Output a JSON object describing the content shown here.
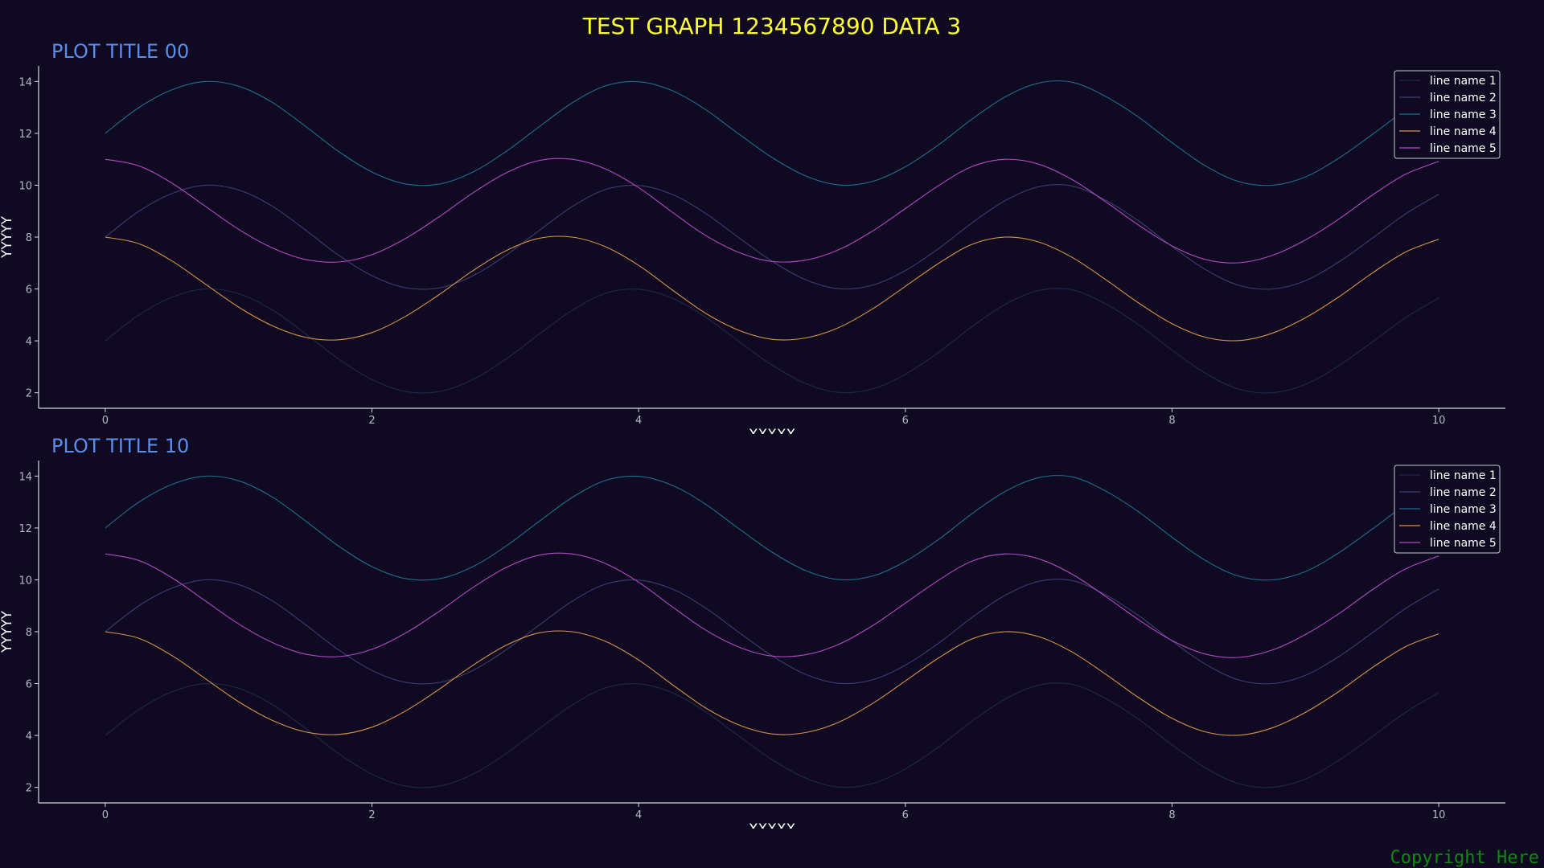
{
  "figure": {
    "title": "TEST GRAPH 1234567890 DATA 3",
    "copyright": "Copyright Here",
    "background": "#0f0a22",
    "title_color": "#ffff33",
    "panel_title_color": "#5b8def"
  },
  "chart_data": [
    {
      "type": "line",
      "title": "PLOT TITLE 00",
      "xlabel": "XXXXX",
      "ylabel": "YYYYY",
      "xlim": [
        -0.5,
        10.5
      ],
      "ylim": [
        1.4,
        14.6
      ],
      "xticks": [
        0,
        2,
        4,
        6,
        8,
        10
      ],
      "yticks": [
        2,
        4,
        6,
        8,
        10,
        12,
        14
      ],
      "grid": false,
      "legend_position": "top-right",
      "x": [
        0,
        0.25,
        0.5,
        0.75,
        1,
        1.25,
        1.5,
        1.75,
        2,
        2.25,
        2.5,
        2.75,
        3,
        3.25,
        3.5,
        3.75,
        4,
        4.25,
        4.5,
        4.75,
        5,
        5.25,
        5.5,
        5.75,
        6,
        6.25,
        6.5,
        6.75,
        7,
        7.25,
        7.5,
        7.75,
        8,
        8.25,
        8.5,
        8.75,
        9,
        9.25,
        9.5,
        9.75,
        10
      ],
      "series": [
        {
          "name": "line name 1",
          "color": "#1e2a48",
          "values": [
            4.0,
            4.99,
            5.68,
            6.0,
            5.82,
            5.2,
            4.28,
            3.3,
            2.51,
            2.05,
            2.04,
            2.49,
            3.28,
            4.24,
            5.17,
            5.83,
            5.99,
            5.65,
            4.92,
            3.98,
            3.07,
            2.36,
            2.01,
            2.14,
            2.71,
            3.56,
            4.55,
            5.41,
            5.94,
            5.97,
            5.43,
            4.62,
            3.64,
            2.75,
            2.14,
            2.0,
            2.32,
            3.04,
            3.95,
            4.89,
            5.65
          ]
        },
        {
          "name": "line name 2",
          "color": "#3d3c70",
          "values": [
            8.0,
            8.99,
            9.68,
            10.0,
            9.82,
            9.2,
            8.28,
            7.3,
            6.51,
            6.05,
            6.04,
            6.49,
            7.28,
            8.24,
            9.17,
            9.83,
            9.99,
            9.65,
            8.92,
            7.98,
            7.07,
            6.36,
            6.01,
            6.14,
            6.71,
            7.56,
            8.55,
            9.41,
            9.94,
            9.97,
            9.43,
            8.62,
            7.64,
            6.75,
            6.14,
            6.0,
            6.32,
            7.04,
            7.95,
            8.89,
            9.65
          ]
        },
        {
          "name": "line name 3",
          "color": "#1f6f8b",
          "values": [
            12.0,
            12.99,
            13.68,
            14.0,
            13.82,
            13.2,
            12.28,
            11.3,
            10.51,
            10.05,
            10.04,
            10.49,
            11.28,
            12.24,
            13.17,
            13.83,
            13.99,
            13.65,
            12.92,
            11.98,
            11.07,
            10.36,
            10.01,
            10.14,
            10.71,
            11.56,
            12.55,
            13.41,
            13.94,
            13.97,
            13.43,
            12.62,
            11.64,
            10.75,
            10.14,
            10.0,
            10.32,
            11.04,
            11.95,
            12.89,
            13.65
          ]
        },
        {
          "name": "line name 4",
          "color": "#d9924a",
          "values": [
            8.0,
            7.75,
            7.08,
            6.19,
            5.3,
            4.59,
            4.14,
            4.04,
            4.32,
            4.94,
            5.77,
            6.68,
            7.46,
            7.95,
            8.0,
            7.63,
            6.91,
            5.97,
            5.07,
            4.41,
            4.06,
            4.11,
            4.51,
            5.22,
            6.1,
            6.99,
            7.72,
            8.0,
            7.81,
            7.22,
            6.37,
            5.46,
            4.66,
            4.14,
            4.01,
            4.29,
            4.89,
            5.69,
            6.61,
            7.42,
            7.92
          ]
        },
        {
          "name": "line name 5",
          "color": "#b347c4",
          "values": [
            11.0,
            10.75,
            10.08,
            9.19,
            8.3,
            7.59,
            7.14,
            7.04,
            7.32,
            7.94,
            8.77,
            9.68,
            10.46,
            10.95,
            11.0,
            10.63,
            9.91,
            8.97,
            8.07,
            7.41,
            7.06,
            7.11,
            7.51,
            8.22,
            9.1,
            9.99,
            10.72,
            11.0,
            10.81,
            10.22,
            9.37,
            8.46,
            7.66,
            7.14,
            7.01,
            7.29,
            7.89,
            8.69,
            9.61,
            10.42,
            10.92
          ]
        }
      ]
    },
    {
      "type": "line",
      "title": "PLOT TITLE 10",
      "xlabel": "XXXXX",
      "ylabel": "YYYYY",
      "xlim": [
        -0.5,
        10.5
      ],
      "ylim": [
        1.4,
        14.6
      ],
      "xticks": [
        0,
        2,
        4,
        6,
        8,
        10
      ],
      "yticks": [
        2,
        4,
        6,
        8,
        10,
        12,
        14
      ],
      "grid": false,
      "legend_position": "top-right",
      "x": [
        0,
        0.25,
        0.5,
        0.75,
        1,
        1.25,
        1.5,
        1.75,
        2,
        2.25,
        2.5,
        2.75,
        3,
        3.25,
        3.5,
        3.75,
        4,
        4.25,
        4.5,
        4.75,
        5,
        5.25,
        5.5,
        5.75,
        6,
        6.25,
        6.5,
        6.75,
        7,
        7.25,
        7.5,
        7.75,
        8,
        8.25,
        8.5,
        8.75,
        9,
        9.25,
        9.5,
        9.75,
        10
      ],
      "series": [
        {
          "name": "line name 1",
          "color": "#1e2a48",
          "values": [
            4.0,
            4.99,
            5.68,
            6.0,
            5.82,
            5.2,
            4.28,
            3.3,
            2.51,
            2.05,
            2.04,
            2.49,
            3.28,
            4.24,
            5.17,
            5.83,
            5.99,
            5.65,
            4.92,
            3.98,
            3.07,
            2.36,
            2.01,
            2.14,
            2.71,
            3.56,
            4.55,
            5.41,
            5.94,
            5.97,
            5.43,
            4.62,
            3.64,
            2.75,
            2.14,
            2.0,
            2.32,
            3.04,
            3.95,
            4.89,
            5.65
          ]
        },
        {
          "name": "line name 2",
          "color": "#3d3c70",
          "values": [
            8.0,
            8.99,
            9.68,
            10.0,
            9.82,
            9.2,
            8.28,
            7.3,
            6.51,
            6.05,
            6.04,
            6.49,
            7.28,
            8.24,
            9.17,
            9.83,
            9.99,
            9.65,
            8.92,
            7.98,
            7.07,
            6.36,
            6.01,
            6.14,
            6.71,
            7.56,
            8.55,
            9.41,
            9.94,
            9.97,
            9.43,
            8.62,
            7.64,
            6.75,
            6.14,
            6.0,
            6.32,
            7.04,
            7.95,
            8.89,
            9.65
          ]
        },
        {
          "name": "line name 3",
          "color": "#1f6f8b",
          "values": [
            12.0,
            12.99,
            13.68,
            14.0,
            13.82,
            13.2,
            12.28,
            11.3,
            10.51,
            10.05,
            10.04,
            10.49,
            11.28,
            12.24,
            13.17,
            13.83,
            13.99,
            13.65,
            12.92,
            11.98,
            11.07,
            10.36,
            10.01,
            10.14,
            10.71,
            11.56,
            12.55,
            13.41,
            13.94,
            13.97,
            13.43,
            12.62,
            11.64,
            10.75,
            10.14,
            10.0,
            10.32,
            11.04,
            11.95,
            12.89,
            13.65
          ]
        },
        {
          "name": "line name 4",
          "color": "#d9924a",
          "values": [
            8.0,
            7.75,
            7.08,
            6.19,
            5.3,
            4.59,
            4.14,
            4.04,
            4.32,
            4.94,
            5.77,
            6.68,
            7.46,
            7.95,
            8.0,
            7.63,
            6.91,
            5.97,
            5.07,
            4.41,
            4.06,
            4.11,
            4.51,
            5.22,
            6.1,
            6.99,
            7.72,
            8.0,
            7.81,
            7.22,
            6.37,
            5.46,
            4.66,
            4.14,
            4.01,
            4.29,
            4.89,
            5.69,
            6.61,
            7.42,
            7.92
          ]
        },
        {
          "name": "line name 5",
          "color": "#b347c4",
          "values": [
            11.0,
            10.75,
            10.08,
            9.19,
            8.3,
            7.59,
            7.14,
            7.04,
            7.32,
            7.94,
            8.77,
            9.68,
            10.46,
            10.95,
            11.0,
            10.63,
            9.91,
            8.97,
            8.07,
            7.41,
            7.06,
            7.11,
            7.51,
            8.22,
            9.1,
            9.99,
            10.72,
            11.0,
            10.81,
            10.22,
            9.37,
            8.46,
            7.66,
            7.14,
            7.01,
            7.29,
            7.89,
            8.69,
            9.61,
            10.42,
            10.92
          ]
        }
      ]
    }
  ]
}
